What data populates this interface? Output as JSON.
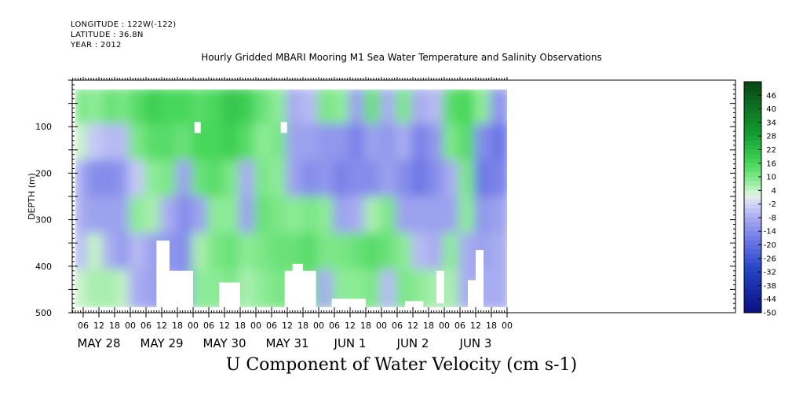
{
  "header": {
    "longitude": "LONGITUDE : 122W(-122)",
    "latitude": "LATITUDE : 36.8N",
    "year": "YEAR : 2012"
  },
  "chart_data": {
    "type": "heatmap",
    "title": "Hourly Gridded MBARI Mooring M1 Sea Water Temperature and Salinity Observations",
    "xlabel": "U Component of Water Velocity (cm s-1)",
    "ylabel": "DEPTH (m)",
    "ylim": [
      500,
      0
    ],
    "y_ticks": [
      100,
      200,
      300,
      400,
      500
    ],
    "x_hour_ticks": [
      "06",
      "12",
      "18",
      "00",
      "06",
      "12",
      "18",
      "00",
      "06",
      "12",
      "18",
      "00",
      "06",
      "12",
      "18",
      "00",
      "06",
      "12",
      "18",
      "00",
      "06",
      "12",
      "18",
      "00",
      "06",
      "12",
      "18",
      "00"
    ],
    "x_day_labels": [
      "MAY 28",
      "MAY 29",
      "MAY 30",
      "MAY 31",
      "JUN  1",
      "JUN  2",
      "JUN  3"
    ],
    "colorbar": {
      "ticks": [
        46,
        40,
        34,
        28,
        22,
        16,
        10,
        4,
        -2,
        -8,
        -14,
        -20,
        -26,
        -32,
        -38,
        -44,
        -50
      ],
      "range": [
        -50,
        52
      ]
    },
    "colors": {
      "strong_negative": "#0a1a8a",
      "negative": "#a8acef",
      "neutral": "#eaf7ea",
      "positive": "#60e060",
      "strong_positive": "#0a5a18"
    },
    "depth_columns": [
      {
        "day_hour": 3,
        "u_profile": [
          10,
          4,
          -8,
          -8,
          -6,
          4
        ]
      },
      {
        "day_hour": 8,
        "u_profile": [
          8,
          -4,
          -14,
          -10,
          4,
          6
        ]
      },
      {
        "day_hour": 14,
        "u_profile": [
          12,
          -6,
          -14,
          -10,
          -8,
          6
        ]
      },
      {
        "day_hour": 20,
        "u_profile": [
          10,
          -6,
          -12,
          -10,
          -12,
          4
        ]
      },
      {
        "day_hour": 24,
        "u_profile": [
          14,
          10,
          -4,
          8,
          -6,
          -8
        ]
      },
      {
        "day_hour": 30,
        "u_profile": [
          18,
          14,
          8,
          6,
          -10,
          -10
        ]
      },
      {
        "day_hour": 36,
        "u_profile": [
          16,
          14,
          10,
          -8,
          -12,
          -10
        ]
      },
      {
        "day_hour": 42,
        "u_profile": [
          16,
          12,
          -10,
          -14,
          -14,
          -12
        ]
      },
      {
        "day_hour": 48,
        "u_profile": [
          14,
          16,
          12,
          -10,
          6,
          8
        ]
      },
      {
        "day_hour": 54,
        "u_profile": [
          16,
          16,
          14,
          8,
          10,
          8
        ]
      },
      {
        "day_hour": 60,
        "u_profile": [
          20,
          18,
          10,
          8,
          12,
          10
        ]
      },
      {
        "day_hour": 66,
        "u_profile": [
          18,
          14,
          -8,
          -10,
          8,
          6
        ]
      },
      {
        "day_hour": 72,
        "u_profile": [
          12,
          8,
          10,
          12,
          10,
          8
        ]
      },
      {
        "day_hour": 78,
        "u_profile": [
          8,
          10,
          8,
          10,
          12,
          10
        ]
      },
      {
        "day_hour": 84,
        "u_profile": [
          -8,
          -10,
          -10,
          8,
          12,
          10
        ]
      },
      {
        "day_hour": 90,
        "u_profile": [
          -6,
          -10,
          -14,
          10,
          14,
          12
        ]
      },
      {
        "day_hour": 96,
        "u_profile": [
          10,
          -12,
          -12,
          8,
          10,
          -8
        ]
      },
      {
        "day_hour": 102,
        "u_profile": [
          8,
          -12,
          -16,
          -10,
          10,
          8
        ]
      },
      {
        "day_hour": 108,
        "u_profile": [
          -10,
          -16,
          -14,
          -8,
          12,
          8
        ]
      },
      {
        "day_hour": 114,
        "u_profile": [
          12,
          -10,
          -14,
          6,
          14,
          10
        ]
      },
      {
        "day_hour": 120,
        "u_profile": [
          -8,
          -12,
          -10,
          10,
          12,
          -6
        ]
      },
      {
        "day_hour": 126,
        "u_profile": [
          10,
          -8,
          -14,
          -10,
          8,
          10
        ]
      },
      {
        "day_hour": 132,
        "u_profile": [
          -8,
          -16,
          -18,
          -10,
          -6,
          8
        ]
      },
      {
        "day_hour": 138,
        "u_profile": [
          -6,
          -12,
          -14,
          -10,
          -8,
          6
        ]
      },
      {
        "day_hour": 144,
        "u_profile": [
          14,
          10,
          -8,
          -10,
          8,
          6
        ]
      },
      {
        "day_hour": 150,
        "u_profile": [
          16,
          14,
          10,
          8,
          -8,
          -8
        ]
      },
      {
        "day_hour": 156,
        "u_profile": [
          8,
          -14,
          -18,
          -12,
          -10,
          -8
        ]
      },
      {
        "day_hour": 162,
        "u_profile": [
          -12,
          -18,
          -16,
          -10,
          -8,
          -8
        ]
      }
    ]
  }
}
